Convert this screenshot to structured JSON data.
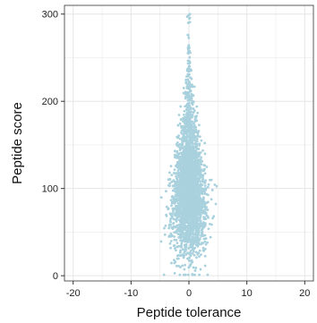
{
  "chart_data": {
    "type": "scatter",
    "title": "",
    "xlabel": "Peptide tolerance",
    "ylabel": "Peptide score",
    "xlim": [
      -21.5,
      21.5
    ],
    "ylim": [
      -6,
      310
    ],
    "x_ticks": [
      -20,
      -10,
      0,
      10,
      20
    ],
    "x_tick_labels": [
      "-20",
      "-10",
      "0",
      "10",
      "20"
    ],
    "y_ticks": [
      0,
      100,
      200,
      300
    ],
    "y_tick_labels": [
      "0",
      "100",
      "200",
      "300"
    ],
    "grid": true,
    "legend": "none",
    "point_color": "#a8d1dd",
    "approx_point_count": 3000,
    "distribution": {
      "x_center": 0,
      "x_spread_at_score_100": 4.5,
      "x_spread_at_score_200": 1.5,
      "y_range": [
        0,
        300
      ],
      "y_mode": 90
    }
  },
  "colors": {
    "panel_background": "#ffffff",
    "grid": "#e6e6e6",
    "panel_border": "#333333",
    "text": "#222222"
  }
}
